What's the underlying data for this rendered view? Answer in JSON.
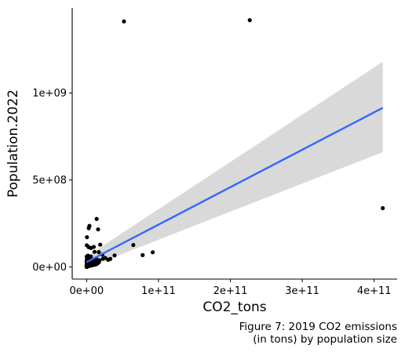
{
  "chart_data": {
    "type": "scatter",
    "xlabel": "CO2_tons",
    "ylabel": "Population.2022",
    "caption": [
      "Figure 7: 2019 CO2 emissions",
      "(in tons) by population size"
    ],
    "x_ticks": [
      {
        "value": 0,
        "label": "0e+00"
      },
      {
        "value": 100000000000.0,
        "label": "1e+11"
      },
      {
        "value": 200000000000.0,
        "label": "2e+11"
      },
      {
        "value": 300000000000.0,
        "label": "3e+11"
      },
      {
        "value": 400000000000.0,
        "label": "4e+11"
      }
    ],
    "y_ticks": [
      {
        "value": 0,
        "label": "0e+00"
      },
      {
        "value": 500000000.0,
        "label": "5e+08"
      },
      {
        "value": 1000000000.0,
        "label": "1e+09"
      }
    ],
    "xlim": [
      -20000000000,
      432000000000
    ],
    "ylim": [
      -70000000,
      1490000000
    ],
    "grid": false,
    "colors": {
      "points": "#000000",
      "fit_line": "#3366ff",
      "confidence_band": "#d9d9d9"
    },
    "points": [
      [
        52000000000.0,
        1412000000.0
      ],
      [
        227000000000.0,
        1419000000.0
      ],
      [
        412000000000.0,
        338000000.0
      ],
      [
        14000000000.0,
        276000000.0
      ],
      [
        4000000000.0,
        236000000.0
      ],
      [
        3000000000.0,
        223000000.0
      ],
      [
        16000000000.0,
        216000000.0
      ],
      [
        500000000.0,
        171000000.0
      ],
      [
        300000000.0,
        124000000.0
      ],
      [
        19000000000.0,
        128000000.0
      ],
      [
        10000000000.0,
        115000000.0
      ],
      [
        6000000000.0,
        109000000.0
      ],
      [
        3000000000.0,
        113000000.0
      ],
      [
        65000000000.0,
        126000000.0
      ],
      [
        11000000000.0,
        87000000.0
      ],
      [
        17000000000.0,
        85000000.0
      ],
      [
        22000000000.0,
        70000000.0
      ],
      [
        39000000000.0,
        66000000.0
      ],
      [
        78000000000.0,
        68000000.0
      ],
      [
        92000000000.0,
        84000000.0
      ],
      [
        6000000000.0,
        60000000.0
      ],
      [
        26000000000.0,
        52000000.0
      ],
      [
        23000000000.0,
        47000000.0
      ],
      [
        14000000000.0,
        45000000.0
      ],
      [
        33000000000.0,
        46000000.0
      ],
      [
        30000000000.0,
        41000000.0
      ],
      [
        18000000000.0,
        38000000.0
      ],
      [
        10000000000.0,
        35000000.0
      ],
      [
        14000000000.0,
        29000000.0
      ],
      [
        17000000000.0,
        26000000.0
      ],
      [
        13000000000.0,
        15000000.0
      ],
      [
        11000000000.0,
        12000000.0
      ],
      [
        8000000000.0,
        10000000.0
      ],
      [
        200000000.0,
        60000000.0
      ],
      [
        500000000.0,
        55000000.0
      ],
      [
        1000000000.0,
        50000000.0
      ],
      [
        2000000000.0,
        48000000.0
      ],
      [
        3000000000.0,
        45000000.0
      ],
      [
        300000000.0,
        40000000.0
      ],
      [
        1500000000.0,
        37000000.0
      ],
      [
        2500000000.0,
        35000000.0
      ],
      [
        4000000000.0,
        32000000.0
      ],
      [
        100000000.0,
        30000000.0
      ],
      [
        800000000.0,
        28000000.0
      ],
      [
        1800000000.0,
        26000000.0
      ],
      [
        3500000000.0,
        24000000.0
      ],
      [
        5000000000.0,
        22000000.0
      ],
      [
        6500000000.0,
        20000000.0
      ],
      [
        200000000.0,
        20000000.0
      ],
      [
        1000000000.0,
        18000000.0
      ],
      [
        2200000000.0,
        16000000.0
      ],
      [
        4500000000.0,
        15000000.0
      ],
      [
        400000000.0,
        14000000.0
      ],
      [
        1500000000.0,
        12000000.0
      ],
      [
        3000000000.0,
        11000000.0
      ],
      [
        100000000.0,
        10000000.0
      ],
      [
        700000000.0,
        9000000.0
      ],
      [
        2000000000.0,
        8000000.0
      ],
      [
        5500000000.0,
        7000000.0
      ],
      [
        300000000.0,
        6000000.0
      ],
      [
        1200000000.0,
        5500000.0
      ],
      [
        2800000000.0,
        5000000.0
      ],
      [
        100000000.0,
        4500000.0
      ],
      [
        600000000.0,
        4000000.0
      ],
      [
        1600000000.0,
        3500000.0
      ],
      [
        200000000.0,
        3000000.0
      ],
      [
        900000000.0,
        2500000.0
      ],
      [
        100000000.0,
        2000000.0
      ],
      [
        400000000.0,
        1500000.0
      ],
      [
        1300000000.0,
        1200000.0
      ],
      [
        100000000.0,
        1000000.0
      ],
      [
        300000000.0,
        800000.0
      ],
      [
        600000000.0,
        600000.0
      ],
      [
        100000000.0,
        500000.0
      ],
      [
        200000000.0,
        300000.0
      ],
      [
        100000000.0,
        200000.0
      ],
      [
        2000000000.0,
        65000000.0
      ],
      [
        7000000000.0,
        41000000.0
      ],
      [
        9000000000.0,
        36000000.0
      ],
      [
        8000000000.0,
        27000000.0
      ],
      [
        12000000000.0,
        22000000.0
      ],
      [
        7000000000.0,
        13000000.0
      ],
      [
        15000000000.0,
        19000000.0
      ]
    ],
    "fit": {
      "x": [
        0,
        412000000000
      ],
      "y": [
        28000000,
        915000000
      ],
      "band_lower": [
        -5000000,
        660000000
      ],
      "band_upper": [
        60000000,
        1180000000
      ]
    }
  }
}
